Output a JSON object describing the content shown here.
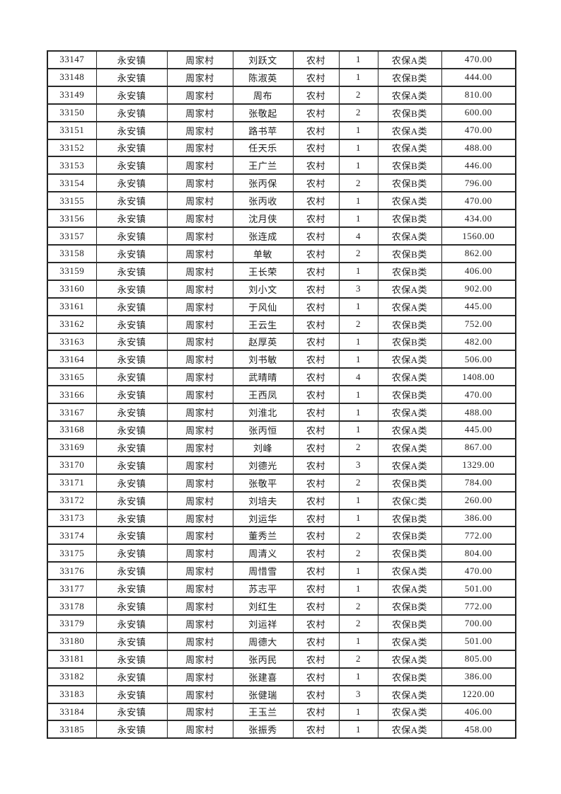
{
  "page": {
    "background_color": "#ffffff",
    "border_color": "#2a2a2a",
    "text_color": "#1d1d1d"
  },
  "table": {
    "columns": [
      "record-id",
      "town",
      "village",
      "person-name",
      "residence-type",
      "person-count",
      "insurance-category",
      "amount"
    ],
    "rows": [
      [
        "33147",
        "永安镇",
        "周家村",
        "刘跃文",
        "农村",
        "1",
        "农保A类",
        "470.00"
      ],
      [
        "33148",
        "永安镇",
        "周家村",
        "陈淑英",
        "农村",
        "1",
        "农保B类",
        "444.00"
      ],
      [
        "33149",
        "永安镇",
        "周家村",
        "周布",
        "农村",
        "2",
        "农保A类",
        "810.00"
      ],
      [
        "33150",
        "永安镇",
        "周家村",
        "张敬起",
        "农村",
        "2",
        "农保B类",
        "600.00"
      ],
      [
        "33151",
        "永安镇",
        "周家村",
        "路书苹",
        "农村",
        "1",
        "农保A类",
        "470.00"
      ],
      [
        "33152",
        "永安镇",
        "周家村",
        "任天乐",
        "农村",
        "1",
        "农保A类",
        "488.00"
      ],
      [
        "33153",
        "永安镇",
        "周家村",
        "王广兰",
        "农村",
        "1",
        "农保B类",
        "446.00"
      ],
      [
        "33154",
        "永安镇",
        "周家村",
        "张丙保",
        "农村",
        "2",
        "农保B类",
        "796.00"
      ],
      [
        "33155",
        "永安镇",
        "周家村",
        "张丙收",
        "农村",
        "1",
        "农保A类",
        "470.00"
      ],
      [
        "33156",
        "永安镇",
        "周家村",
        "沈月侠",
        "农村",
        "1",
        "农保B类",
        "434.00"
      ],
      [
        "33157",
        "永安镇",
        "周家村",
        "张连成",
        "农村",
        "4",
        "农保A类",
        "1560.00"
      ],
      [
        "33158",
        "永安镇",
        "周家村",
        "单敏",
        "农村",
        "2",
        "农保B类",
        "862.00"
      ],
      [
        "33159",
        "永安镇",
        "周家村",
        "王长荣",
        "农村",
        "1",
        "农保B类",
        "406.00"
      ],
      [
        "33160",
        "永安镇",
        "周家村",
        "刘小文",
        "农村",
        "3",
        "农保A类",
        "902.00"
      ],
      [
        "33161",
        "永安镇",
        "周家村",
        "于风仙",
        "农村",
        "1",
        "农保A类",
        "445.00"
      ],
      [
        "33162",
        "永安镇",
        "周家村",
        "王云生",
        "农村",
        "2",
        "农保B类",
        "752.00"
      ],
      [
        "33163",
        "永安镇",
        "周家村",
        "赵厚英",
        "农村",
        "1",
        "农保B类",
        "482.00"
      ],
      [
        "33164",
        "永安镇",
        "周家村",
        "刘书敏",
        "农村",
        "1",
        "农保A类",
        "506.00"
      ],
      [
        "33165",
        "永安镇",
        "周家村",
        "武晴晴",
        "农村",
        "4",
        "农保A类",
        "1408.00"
      ],
      [
        "33166",
        "永安镇",
        "周家村",
        "王西凤",
        "农村",
        "1",
        "农保B类",
        "470.00"
      ],
      [
        "33167",
        "永安镇",
        "周家村",
        "刘淮北",
        "农村",
        "1",
        "农保A类",
        "488.00"
      ],
      [
        "33168",
        "永安镇",
        "周家村",
        "张丙恒",
        "农村",
        "1",
        "农保A类",
        "445.00"
      ],
      [
        "33169",
        "永安镇",
        "周家村",
        "刘峰",
        "农村",
        "2",
        "农保A类",
        "867.00"
      ],
      [
        "33170",
        "永安镇",
        "周家村",
        "刘德光",
        "农村",
        "3",
        "农保A类",
        "1329.00"
      ],
      [
        "33171",
        "永安镇",
        "周家村",
        "张敬平",
        "农村",
        "2",
        "农保B类",
        "784.00"
      ],
      [
        "33172",
        "永安镇",
        "周家村",
        "刘培夫",
        "农村",
        "1",
        "农保C类",
        "260.00"
      ],
      [
        "33173",
        "永安镇",
        "周家村",
        "刘运华",
        "农村",
        "1",
        "农保B类",
        "386.00"
      ],
      [
        "33174",
        "永安镇",
        "周家村",
        "董秀兰",
        "农村",
        "2",
        "农保B类",
        "772.00"
      ],
      [
        "33175",
        "永安镇",
        "周家村",
        "周清义",
        "农村",
        "2",
        "农保B类",
        "804.00"
      ],
      [
        "33176",
        "永安镇",
        "周家村",
        "周惜雪",
        "农村",
        "1",
        "农保A类",
        "470.00"
      ],
      [
        "33177",
        "永安镇",
        "周家村",
        "苏志平",
        "农村",
        "1",
        "农保A类",
        "501.00"
      ],
      [
        "33178",
        "永安镇",
        "周家村",
        "刘红生",
        "农村",
        "2",
        "农保B类",
        "772.00"
      ],
      [
        "33179",
        "永安镇",
        "周家村",
        "刘运祥",
        "农村",
        "2",
        "农保B类",
        "700.00"
      ],
      [
        "33180",
        "永安镇",
        "周家村",
        "周德大",
        "农村",
        "1",
        "农保A类",
        "501.00"
      ],
      [
        "33181",
        "永安镇",
        "周家村",
        "张丙民",
        "农村",
        "2",
        "农保A类",
        "805.00"
      ],
      [
        "33182",
        "永安镇",
        "周家村",
        "张建喜",
        "农村",
        "1",
        "农保B类",
        "386.00"
      ],
      [
        "33183",
        "永安镇",
        "周家村",
        "张健瑞",
        "农村",
        "3",
        "农保A类",
        "1220.00"
      ],
      [
        "33184",
        "永安镇",
        "周家村",
        "王玉兰",
        "农村",
        "1",
        "农保A类",
        "406.00"
      ],
      [
        "33185",
        "永安镇",
        "周家村",
        "张振秀",
        "农村",
        "1",
        "农保A类",
        "458.00"
      ]
    ]
  }
}
